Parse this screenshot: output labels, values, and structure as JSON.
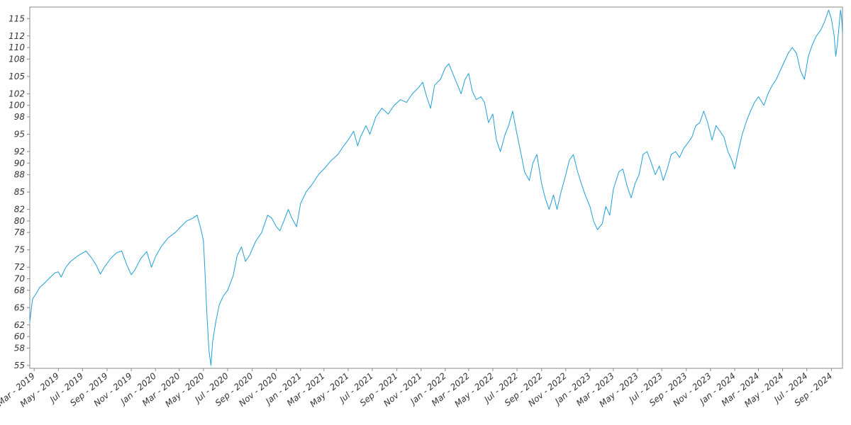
{
  "chart_data": {
    "type": "line",
    "title": "",
    "xlabel": "",
    "ylabel": "",
    "grid": false,
    "legend": "none",
    "x_range": [
      "2019-02-18",
      "2024-09-29"
    ],
    "ylim": [
      54.5,
      117.0
    ],
    "y_ticks": [
      55,
      58,
      60,
      62,
      65,
      68,
      70,
      72,
      75,
      78,
      80,
      82,
      85,
      88,
      90,
      92,
      95,
      98,
      100,
      102,
      105,
      108,
      110,
      112,
      115
    ],
    "x_ticks": [
      {
        "date": "2019-03-01",
        "label": "Mar - 2019"
      },
      {
        "date": "2019-05-01",
        "label": "May - 2019"
      },
      {
        "date": "2019-07-01",
        "label": "Jul - 2019"
      },
      {
        "date": "2019-09-01",
        "label": "Sep - 2019"
      },
      {
        "date": "2019-11-01",
        "label": "Nov - 2019"
      },
      {
        "date": "2020-01-01",
        "label": "Jan - 2020"
      },
      {
        "date": "2020-03-01",
        "label": "Mar - 2020"
      },
      {
        "date": "2020-05-01",
        "label": "May - 2020"
      },
      {
        "date": "2020-07-01",
        "label": "Jul - 2020"
      },
      {
        "date": "2020-09-01",
        "label": "Sep - 2020"
      },
      {
        "date": "2020-11-01",
        "label": "Nov - 2020"
      },
      {
        "date": "2021-01-01",
        "label": "Jan - 2021"
      },
      {
        "date": "2021-03-01",
        "label": "Mar - 2021"
      },
      {
        "date": "2021-05-01",
        "label": "May - 2021"
      },
      {
        "date": "2021-07-01",
        "label": "Jul - 2021"
      },
      {
        "date": "2021-09-01",
        "label": "Sep - 2021"
      },
      {
        "date": "2021-11-01",
        "label": "Nov - 2021"
      },
      {
        "date": "2022-01-01",
        "label": "Jan - 2022"
      },
      {
        "date": "2022-03-01",
        "label": "Mar - 2022"
      },
      {
        "date": "2022-05-01",
        "label": "May - 2022"
      },
      {
        "date": "2022-07-01",
        "label": "Jul - 2022"
      },
      {
        "date": "2022-09-01",
        "label": "Sep - 2022"
      },
      {
        "date": "2022-11-01",
        "label": "Nov - 2022"
      },
      {
        "date": "2023-01-01",
        "label": "Jan - 2023"
      },
      {
        "date": "2023-03-01",
        "label": "Mar - 2023"
      },
      {
        "date": "2023-05-01",
        "label": "May - 2023"
      },
      {
        "date": "2023-07-01",
        "label": "Jul - 2023"
      },
      {
        "date": "2023-09-01",
        "label": "Sep - 2023"
      },
      {
        "date": "2023-11-01",
        "label": "Nov - 2023"
      },
      {
        "date": "2024-01-01",
        "label": "Jan - 2024"
      },
      {
        "date": "2024-03-01",
        "label": "Mar - 2024"
      },
      {
        "date": "2024-05-01",
        "label": "May - 2024"
      },
      {
        "date": "2024-07-01",
        "label": "Jul - 2024"
      },
      {
        "date": "2024-09-01",
        "label": "Sep - 2024"
      }
    ],
    "series": [
      {
        "color": "#1f9fd6",
        "points": [
          [
            "2019-02-18",
            62.5
          ],
          [
            "2019-02-25",
            66.5
          ],
          [
            "2019-03-04",
            67.2
          ],
          [
            "2019-03-15",
            68.5
          ],
          [
            "2019-03-28",
            69.3
          ],
          [
            "2019-04-10",
            70.2
          ],
          [
            "2019-04-22",
            71.0
          ],
          [
            "2019-05-01",
            71.2
          ],
          [
            "2019-05-08",
            70.3
          ],
          [
            "2019-05-20",
            72.0
          ],
          [
            "2019-06-01",
            73.0
          ],
          [
            "2019-06-20",
            74.0
          ],
          [
            "2019-07-10",
            74.8
          ],
          [
            "2019-07-25",
            73.5
          ],
          [
            "2019-08-05",
            72.3
          ],
          [
            "2019-08-15",
            70.8
          ],
          [
            "2019-08-25",
            72.0
          ],
          [
            "2019-09-10",
            73.5
          ],
          [
            "2019-09-25",
            74.5
          ],
          [
            "2019-10-08",
            74.8
          ],
          [
            "2019-10-20",
            72.5
          ],
          [
            "2019-11-01",
            70.7
          ],
          [
            "2019-11-10",
            71.5
          ],
          [
            "2019-11-25",
            73.5
          ],
          [
            "2019-12-10",
            74.7
          ],
          [
            "2019-12-22",
            72.0
          ],
          [
            "2020-01-01",
            73.8
          ],
          [
            "2020-01-15",
            75.5
          ],
          [
            "2020-02-01",
            77.0
          ],
          [
            "2020-02-20",
            78.0
          ],
          [
            "2020-03-05",
            79.0
          ],
          [
            "2020-03-20",
            80.0
          ],
          [
            "2020-04-05",
            80.5
          ],
          [
            "2020-04-15",
            81.0
          ],
          [
            "2020-04-25",
            78.5
          ],
          [
            "2020-05-01",
            76.5
          ],
          [
            "2020-05-05",
            71.0
          ],
          [
            "2020-05-10",
            63.5
          ],
          [
            "2020-05-15",
            57.5
          ],
          [
            "2020-05-20",
            55.0
          ],
          [
            "2020-05-24",
            59.0
          ],
          [
            "2020-06-01",
            62.5
          ],
          [
            "2020-06-10",
            65.5
          ],
          [
            "2020-06-20",
            67.0
          ],
          [
            "2020-07-01",
            68.0
          ],
          [
            "2020-07-15",
            70.5
          ],
          [
            "2020-07-25",
            74.0
          ],
          [
            "2020-08-05",
            75.5
          ],
          [
            "2020-08-15",
            73.0
          ],
          [
            "2020-08-25",
            74.0
          ],
          [
            "2020-09-10",
            76.5
          ],
          [
            "2020-09-25",
            78.0
          ],
          [
            "2020-10-10",
            81.0
          ],
          [
            "2020-10-20",
            80.5
          ],
          [
            "2020-11-01",
            79.0
          ],
          [
            "2020-11-10",
            78.3
          ],
          [
            "2020-11-20",
            80.0
          ],
          [
            "2020-12-01",
            82.0
          ],
          [
            "2020-12-10",
            80.5
          ],
          [
            "2020-12-22",
            79.0
          ],
          [
            "2021-01-01",
            83.0
          ],
          [
            "2021-01-15",
            85.0
          ],
          [
            "2021-02-01",
            86.5
          ],
          [
            "2021-02-15",
            88.0
          ],
          [
            "2021-03-01",
            89.0
          ],
          [
            "2021-03-20",
            90.5
          ],
          [
            "2021-04-05",
            91.5
          ],
          [
            "2021-04-20",
            93.0
          ],
          [
            "2021-05-01",
            94.0
          ],
          [
            "2021-05-15",
            95.5
          ],
          [
            "2021-05-25",
            93.0
          ],
          [
            "2021-06-01",
            94.5
          ],
          [
            "2021-06-15",
            96.5
          ],
          [
            "2021-06-25",
            95.0
          ],
          [
            "2021-07-10",
            98.0
          ],
          [
            "2021-07-25",
            99.5
          ],
          [
            "2021-08-10",
            98.5
          ],
          [
            "2021-08-25",
            100.0
          ],
          [
            "2021-09-10",
            101.0
          ],
          [
            "2021-09-25",
            100.5
          ],
          [
            "2021-10-10",
            102.0
          ],
          [
            "2021-10-25",
            103.0
          ],
          [
            "2021-11-05",
            104.0
          ],
          [
            "2021-11-15",
            101.5
          ],
          [
            "2021-11-25",
            99.5
          ],
          [
            "2021-12-05",
            103.5
          ],
          [
            "2021-12-20",
            104.5
          ],
          [
            "2022-01-01",
            106.5
          ],
          [
            "2022-01-10",
            107.2
          ],
          [
            "2022-01-20",
            105.5
          ],
          [
            "2022-02-01",
            103.5
          ],
          [
            "2022-02-10",
            102.0
          ],
          [
            "2022-02-20",
            104.5
          ],
          [
            "2022-03-01",
            105.5
          ],
          [
            "2022-03-10",
            102.5
          ],
          [
            "2022-03-20",
            101.0
          ],
          [
            "2022-04-01",
            101.5
          ],
          [
            "2022-04-10",
            100.5
          ],
          [
            "2022-04-20",
            97.0
          ],
          [
            "2022-05-01",
            98.5
          ],
          [
            "2022-05-10",
            94.0
          ],
          [
            "2022-05-20",
            92.0
          ],
          [
            "2022-06-01",
            95.0
          ],
          [
            "2022-06-10",
            96.5
          ],
          [
            "2022-06-20",
            99.0
          ],
          [
            "2022-07-01",
            95.0
          ],
          [
            "2022-07-10",
            92.0
          ],
          [
            "2022-07-20",
            88.5
          ],
          [
            "2022-08-01",
            87.0
          ],
          [
            "2022-08-10",
            90.0
          ],
          [
            "2022-08-20",
            91.5
          ],
          [
            "2022-09-01",
            86.5
          ],
          [
            "2022-09-10",
            84.0
          ],
          [
            "2022-09-20",
            82.0
          ],
          [
            "2022-10-01",
            84.5
          ],
          [
            "2022-10-10",
            82.0
          ],
          [
            "2022-10-20",
            85.0
          ],
          [
            "2022-11-01",
            88.0
          ],
          [
            "2022-11-10",
            90.5
          ],
          [
            "2022-11-20",
            91.5
          ],
          [
            "2022-12-01",
            88.5
          ],
          [
            "2022-12-10",
            86.5
          ],
          [
            "2022-12-20",
            84.5
          ],
          [
            "2023-01-01",
            82.5
          ],
          [
            "2023-01-10",
            80.0
          ],
          [
            "2023-01-20",
            78.5
          ],
          [
            "2023-02-01",
            79.5
          ],
          [
            "2023-02-10",
            82.5
          ],
          [
            "2023-02-20",
            81.0
          ],
          [
            "2023-03-01",
            85.5
          ],
          [
            "2023-03-15",
            88.5
          ],
          [
            "2023-03-25",
            89.0
          ],
          [
            "2023-04-05",
            86.0
          ],
          [
            "2023-04-15",
            84.0
          ],
          [
            "2023-04-25",
            86.5
          ],
          [
            "2023-05-05",
            88.0
          ],
          [
            "2023-05-15",
            91.5
          ],
          [
            "2023-05-25",
            92.0
          ],
          [
            "2023-06-05",
            90.0
          ],
          [
            "2023-06-15",
            88.0
          ],
          [
            "2023-06-25",
            89.5
          ],
          [
            "2023-07-05",
            87.0
          ],
          [
            "2023-07-15",
            89.0
          ],
          [
            "2023-07-25",
            91.5
          ],
          [
            "2023-08-05",
            92.0
          ],
          [
            "2023-08-15",
            91.0
          ],
          [
            "2023-08-25",
            92.5
          ],
          [
            "2023-09-05",
            93.5
          ],
          [
            "2023-09-15",
            94.5
          ],
          [
            "2023-09-25",
            96.5
          ],
          [
            "2023-10-05",
            97.0
          ],
          [
            "2023-10-15",
            99.0
          ],
          [
            "2023-10-25",
            97.0
          ],
          [
            "2023-11-05",
            94.0
          ],
          [
            "2023-11-15",
            96.5
          ],
          [
            "2023-11-25",
            95.5
          ],
          [
            "2023-12-05",
            94.5
          ],
          [
            "2023-12-15",
            92.0
          ],
          [
            "2023-12-25",
            90.5
          ],
          [
            "2024-01-01",
            89.0
          ],
          [
            "2024-01-10",
            92.0
          ],
          [
            "2024-01-20",
            95.0
          ],
          [
            "2024-02-01",
            97.5
          ],
          [
            "2024-02-10",
            99.0
          ],
          [
            "2024-02-20",
            100.5
          ],
          [
            "2024-03-01",
            101.5
          ],
          [
            "2024-03-15",
            100.0
          ],
          [
            "2024-03-25",
            102.0
          ],
          [
            "2024-04-05",
            103.5
          ],
          [
            "2024-04-15",
            104.5
          ],
          [
            "2024-04-25",
            106.0
          ],
          [
            "2024-05-05",
            107.5
          ],
          [
            "2024-05-15",
            109.0
          ],
          [
            "2024-05-25",
            110.0
          ],
          [
            "2024-06-05",
            109.0
          ],
          [
            "2024-06-15",
            106.0
          ],
          [
            "2024-06-25",
            104.5
          ],
          [
            "2024-07-05",
            108.5
          ],
          [
            "2024-07-15",
            110.5
          ],
          [
            "2024-07-25",
            112.0
          ],
          [
            "2024-08-05",
            113.0
          ],
          [
            "2024-08-15",
            114.5
          ],
          [
            "2024-08-25",
            116.5
          ],
          [
            "2024-09-01",
            115.0
          ],
          [
            "2024-09-08",
            112.0
          ],
          [
            "2024-09-12",
            108.5
          ],
          [
            "2024-09-16",
            110.5
          ],
          [
            "2024-09-20",
            113.5
          ],
          [
            "2024-09-24",
            116.5
          ],
          [
            "2024-09-27",
            115.0
          ],
          [
            "2024-09-29",
            112.5
          ]
        ]
      }
    ]
  }
}
